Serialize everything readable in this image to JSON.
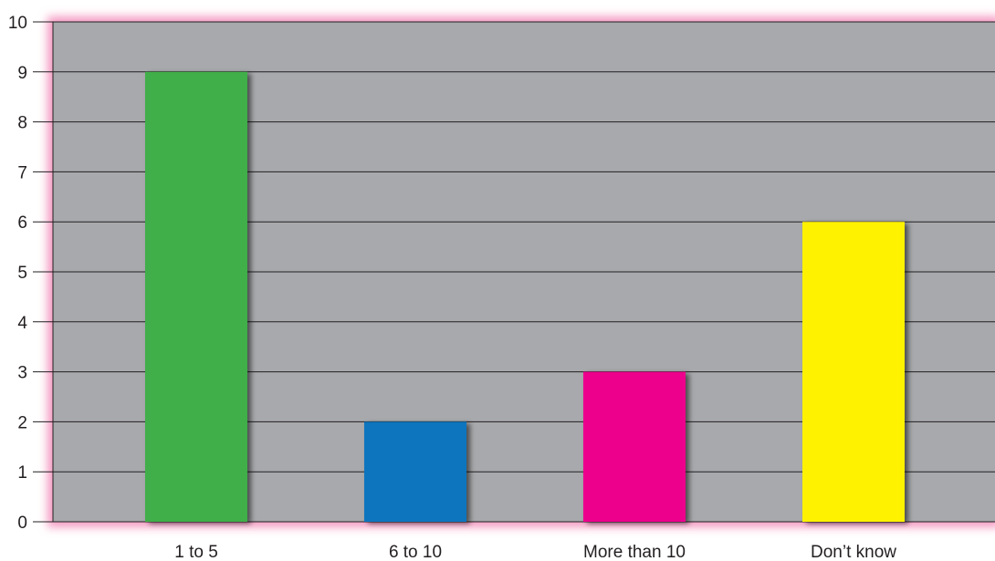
{
  "chart_data": {
    "type": "bar",
    "categories": [
      "1 to 5",
      "6 to 10",
      "More than 10",
      "Don’t know"
    ],
    "values": [
      9,
      2,
      3,
      6
    ],
    "bar_colors": [
      "#3fae49",
      "#1174be",
      "#ec008c",
      "#fff200"
    ],
    "ylim": [
      0,
      10
    ],
    "yticks": [
      "0",
      "1",
      "2",
      "3",
      "4",
      "5",
      "6",
      "7",
      "8",
      "9",
      "10"
    ],
    "grid": true,
    "plot_background": "#a7a9ac",
    "border_glow_color": "#f49ac1",
    "gridline_color": "#231f20"
  }
}
